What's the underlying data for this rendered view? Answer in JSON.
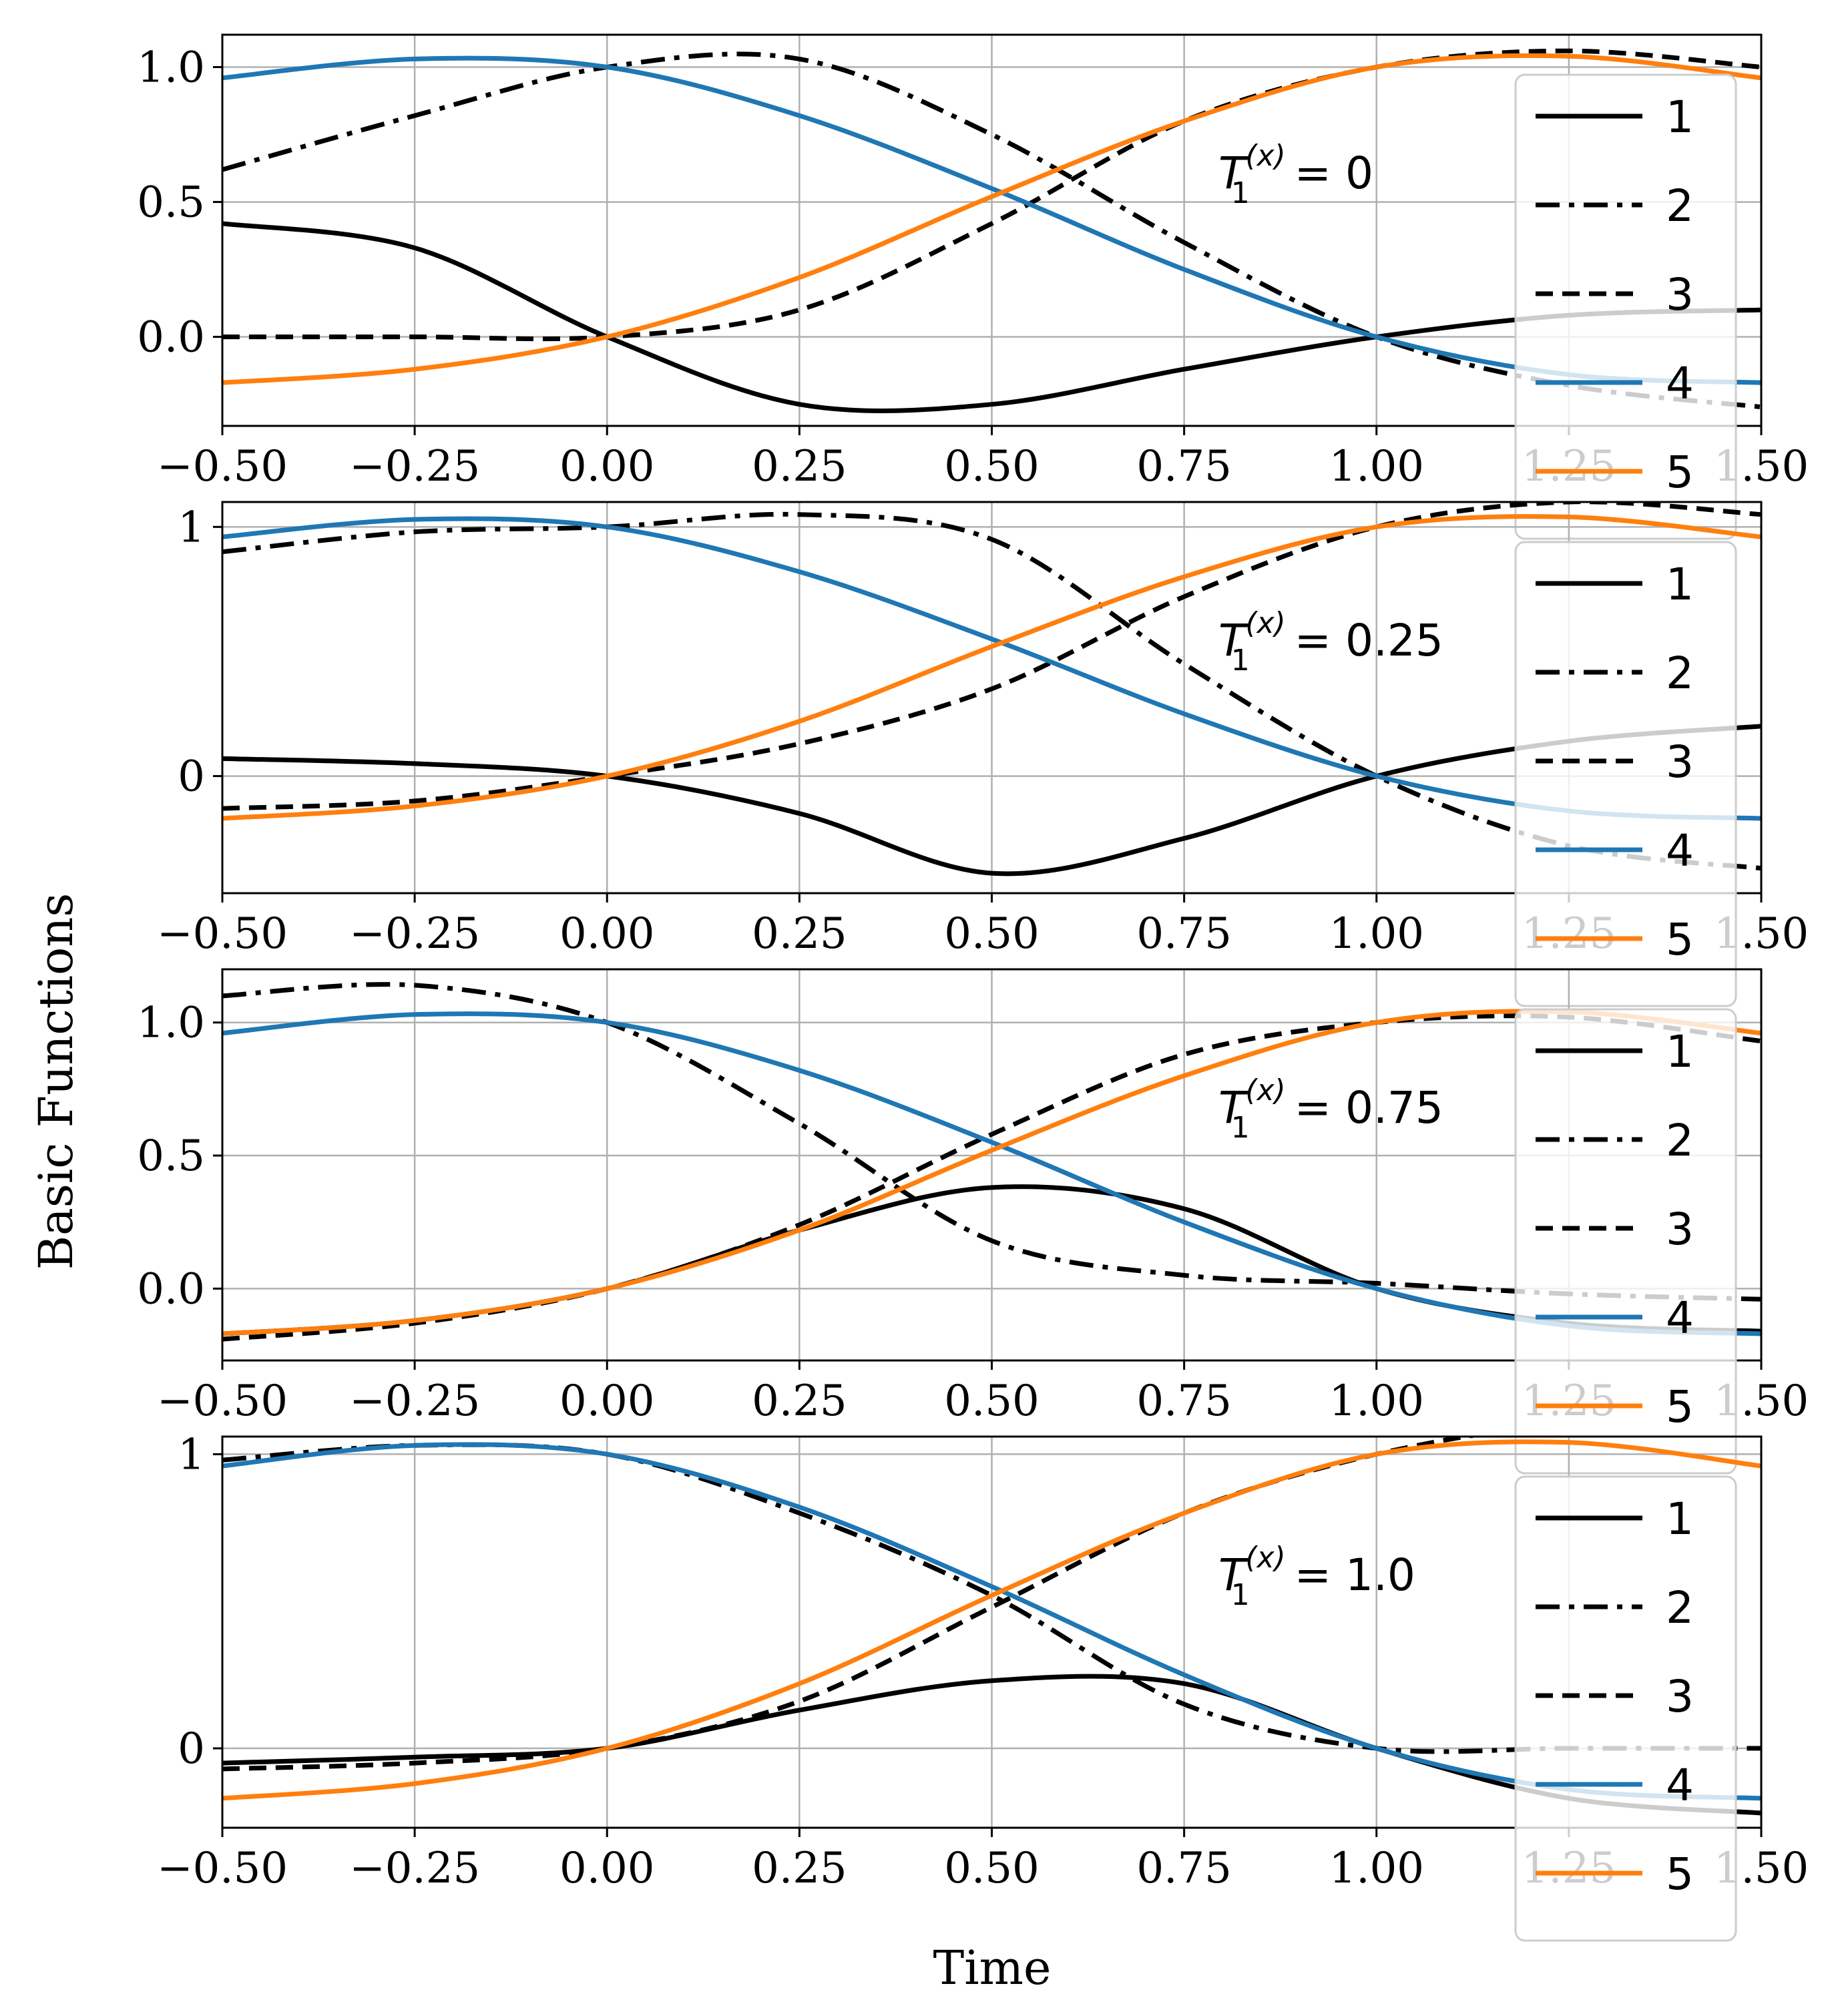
{
  "chart_data": {
    "type": "line",
    "figure": {
      "xlabel": "Time",
      "ylabel": "Basic Functions"
    },
    "colors": {
      "black": "#000000",
      "blue": "#1f77b4",
      "orange": "#ff7f0e",
      "grid": "#b0b0b0"
    },
    "legend": {
      "placement": "right",
      "entries": [
        {
          "label": "1",
          "style": "solid",
          "color": "#000000"
        },
        {
          "label": "2",
          "style": "dashdot",
          "color": "#000000"
        },
        {
          "label": "3",
          "style": "dashed",
          "color": "#000000"
        },
        {
          "label": "4",
          "style": "solid",
          "color": "#1f77b4"
        },
        {
          "label": "5",
          "style": "solid",
          "color": "#ff7f0e"
        }
      ]
    },
    "panels": [
      {
        "annotation": {
          "prefix": "T",
          "sub": "1",
          "sup": "(x)",
          "suffix": " = 0"
        },
        "xlim": [
          -0.5,
          1.5
        ],
        "ylim": [
          -0.33,
          1.12
        ],
        "xticks": [
          "−0.50",
          "−0.25",
          "0.00",
          "0.25",
          "0.50",
          "0.75",
          "1.00",
          "1.25",
          "1.50"
        ],
        "yticks": [
          {
            "v": 0.0,
            "label": "0.0"
          },
          {
            "v": 0.5,
            "label": "0.5"
          },
          {
            "v": 1.0,
            "label": "1.0"
          }
        ],
        "x": [
          -0.5,
          -0.25,
          0.0,
          0.25,
          0.5,
          0.75,
          1.0,
          1.25,
          1.5
        ],
        "series": [
          {
            "name": "1",
            "values": [
              0.42,
              0.33,
              0.0,
              -0.25,
              -0.25,
              -0.12,
              0.0,
              0.08,
              0.1
            ]
          },
          {
            "name": "2",
            "values": [
              0.62,
              0.82,
              1.0,
              1.03,
              0.75,
              0.35,
              0.0,
              -0.18,
              -0.26
            ]
          },
          {
            "name": "3",
            "values": [
              0.0,
              0.0,
              0.0,
              0.1,
              0.42,
              0.8,
              1.0,
              1.06,
              1.0
            ]
          },
          {
            "name": "4",
            "values": [
              0.96,
              1.03,
              1.0,
              0.82,
              0.55,
              0.25,
              0.0,
              -0.14,
              -0.17
            ]
          },
          {
            "name": "5",
            "values": [
              -0.17,
              -0.12,
              0.0,
              0.22,
              0.52,
              0.8,
              1.0,
              1.04,
              0.96
            ]
          }
        ]
      },
      {
        "annotation": {
          "prefix": "T",
          "sub": "1",
          "sup": "(x)",
          "suffix": " = 0.25"
        },
        "xlim": [
          -0.5,
          1.5
        ],
        "ylim": [
          -0.47,
          1.1
        ],
        "xticks": [
          "−0.50",
          "−0.25",
          "0.00",
          "0.25",
          "0.50",
          "0.75",
          "1.00",
          "1.25",
          "1.50"
        ],
        "yticks": [
          {
            "v": 0.0,
            "label": "0"
          },
          {
            "v": 1.0,
            "label": "1"
          }
        ],
        "x": [
          -0.5,
          -0.25,
          0.0,
          0.25,
          0.5,
          0.75,
          1.0,
          1.25,
          1.5
        ],
        "series": [
          {
            "name": "1",
            "values": [
              0.07,
              0.05,
              0.0,
              -0.15,
              -0.39,
              -0.25,
              0.0,
              0.14,
              0.2
            ]
          },
          {
            "name": "2",
            "values": [
              0.9,
              0.98,
              1.0,
              1.05,
              0.95,
              0.45,
              0.0,
              -0.28,
              -0.37
            ]
          },
          {
            "name": "3",
            "values": [
              -0.13,
              -0.1,
              0.0,
              0.13,
              0.35,
              0.72,
              1.0,
              1.1,
              1.05
            ]
          },
          {
            "name": "4",
            "values": [
              0.96,
              1.03,
              1.0,
              0.82,
              0.55,
              0.25,
              0.0,
              -0.14,
              -0.17
            ]
          },
          {
            "name": "5",
            "values": [
              -0.17,
              -0.12,
              0.0,
              0.22,
              0.52,
              0.8,
              1.0,
              1.04,
              0.96
            ]
          }
        ]
      },
      {
        "annotation": {
          "prefix": "T",
          "sub": "1",
          "sup": "(x)",
          "suffix": " = 0.75"
        },
        "xlim": [
          -0.5,
          1.5
        ],
        "ylim": [
          -0.27,
          1.2
        ],
        "xticks": [
          "−0.50",
          "−0.25",
          "0.00",
          "0.25",
          "0.50",
          "0.75",
          "1.00",
          "1.25",
          "1.50"
        ],
        "yticks": [
          {
            "v": 0.0,
            "label": "0.0"
          },
          {
            "v": 0.5,
            "label": "0.5"
          },
          {
            "v": 1.0,
            "label": "1.0"
          }
        ],
        "x": [
          -0.5,
          -0.25,
          0.0,
          0.25,
          0.5,
          0.75,
          1.0,
          1.25,
          1.5
        ],
        "series": [
          {
            "name": "1",
            "values": [
              -0.17,
              -0.12,
              0.0,
              0.22,
              0.38,
              0.3,
              0.0,
              -0.13,
              -0.16
            ]
          },
          {
            "name": "2",
            "values": [
              1.1,
              1.14,
              1.0,
              0.62,
              0.18,
              0.05,
              0.02,
              -0.02,
              -0.04
            ]
          },
          {
            "name": "3",
            "values": [
              -0.19,
              -0.13,
              0.0,
              0.24,
              0.58,
              0.88,
              1.0,
              1.02,
              0.93
            ]
          },
          {
            "name": "4",
            "values": [
              0.96,
              1.03,
              1.0,
              0.82,
              0.55,
              0.25,
              0.0,
              -0.14,
              -0.17
            ]
          },
          {
            "name": "5",
            "values": [
              -0.17,
              -0.12,
              0.0,
              0.22,
              0.52,
              0.8,
              1.0,
              1.04,
              0.96
            ]
          }
        ]
      },
      {
        "annotation": {
          "prefix": "T",
          "sub": "1",
          "sup": "(x)",
          "suffix": " = 1.0"
        },
        "xlim": [
          -0.5,
          1.5
        ],
        "ylim": [
          -0.27,
          1.06
        ],
        "xticks": [
          "−0.50",
          "−0.25",
          "0.00",
          "0.25",
          "0.50",
          "0.75",
          "1.00",
          "1.25",
          "1.50"
        ],
        "yticks": [
          {
            "v": 0.0,
            "label": "0"
          },
          {
            "v": 1.0,
            "label": "1"
          }
        ],
        "x": [
          -0.5,
          -0.25,
          0.0,
          0.25,
          0.5,
          0.75,
          1.0,
          1.25,
          1.5
        ],
        "series": [
          {
            "name": "1",
            "values": [
              -0.05,
              -0.03,
              0.0,
              0.13,
              0.23,
              0.22,
              0.0,
              -0.17,
              -0.22
            ]
          },
          {
            "name": "2",
            "values": [
              0.98,
              1.03,
              1.0,
              0.8,
              0.52,
              0.15,
              0.0,
              0.0,
              0.0
            ]
          },
          {
            "name": "3",
            "values": [
              -0.07,
              -0.05,
              0.0,
              0.16,
              0.48,
              0.8,
              1.0,
              1.1,
              1.08
            ]
          },
          {
            "name": "4",
            "values": [
              0.96,
              1.03,
              1.0,
              0.82,
              0.55,
              0.25,
              0.0,
              -0.14,
              -0.17
            ]
          },
          {
            "name": "5",
            "values": [
              -0.17,
              -0.12,
              0.0,
              0.22,
              0.52,
              0.8,
              1.0,
              1.04,
              0.96
            ]
          }
        ]
      }
    ]
  }
}
